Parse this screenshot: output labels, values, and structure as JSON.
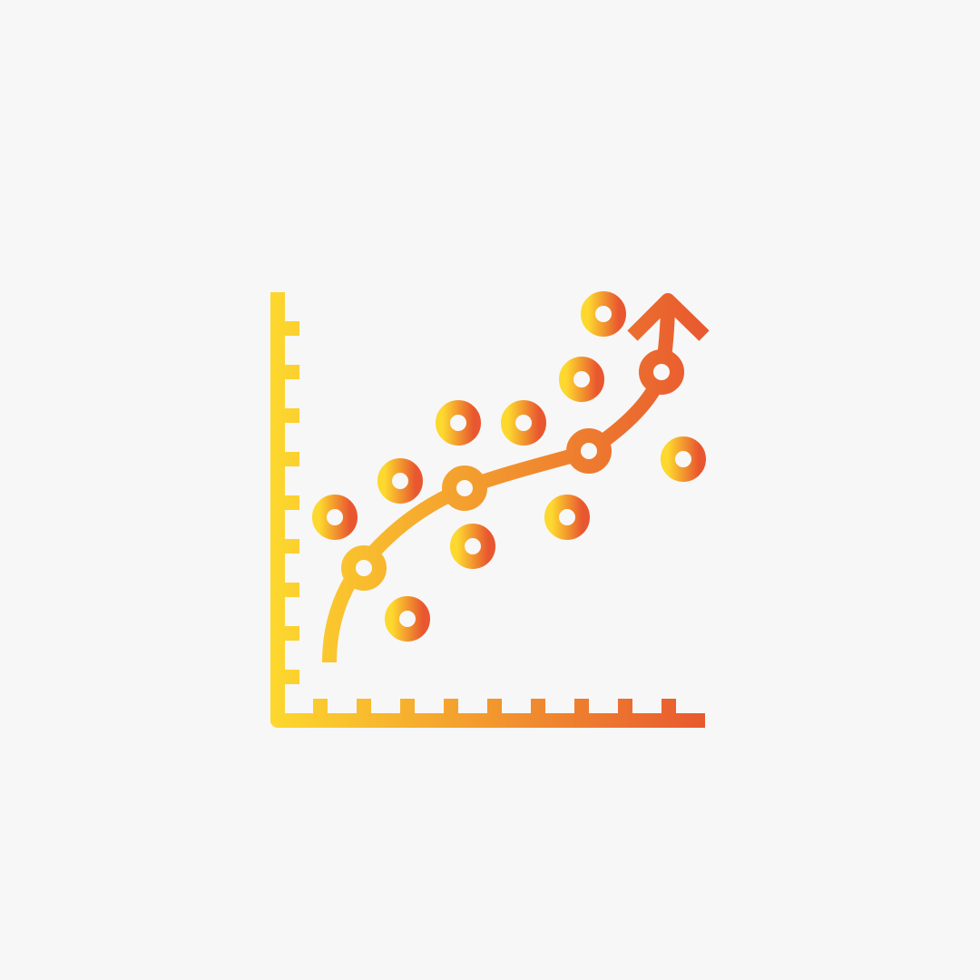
{
  "icon": {
    "name": "scatter-trend-chart-icon",
    "gradient_start": "#fdd82e",
    "gradient_end": "#e8572f",
    "background": "#f7f7f7"
  }
}
